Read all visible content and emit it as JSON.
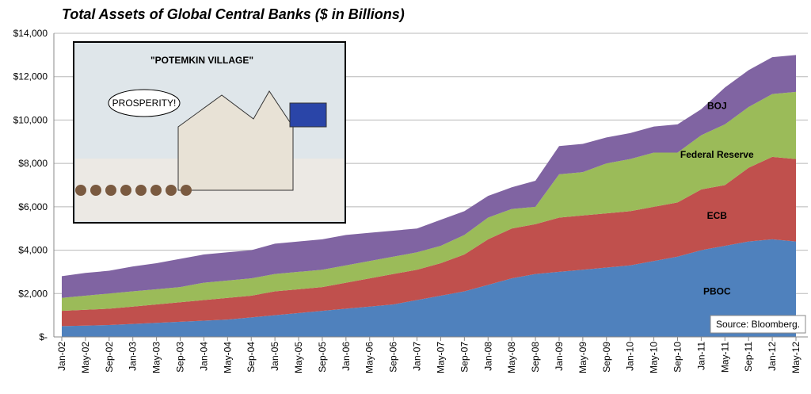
{
  "chart_data": {
    "type": "stacked-area",
    "title": "Total Assets of Global Central Banks ($ in Billions)",
    "categories": [
      "Jan-02",
      "May-02",
      "Sep-02",
      "Jan-03",
      "May-03",
      "Sep-03",
      "Jan-04",
      "May-04",
      "Sep-04",
      "Jan-05",
      "May-05",
      "Sep-05",
      "Jan-06",
      "May-06",
      "Sep-06",
      "Jan-07",
      "May-07",
      "Sep-07",
      "Jan-08",
      "May-08",
      "Sep-08",
      "Jan-09",
      "May-09",
      "Sep-09",
      "Jan-10",
      "May-10",
      "Sep-10",
      "Jan-11",
      "May-11",
      "Sep-11",
      "Jan-12",
      "May-12"
    ],
    "series": [
      {
        "name": "PBOC",
        "color": "#4f81bd",
        "values": [
          500,
          520,
          550,
          600,
          650,
          700,
          750,
          800,
          900,
          1000,
          1100,
          1200,
          1300,
          1400,
          1500,
          1700,
          1900,
          2100,
          2400,
          2700,
          2900,
          3000,
          3100,
          3200,
          3300,
          3500,
          3700,
          4000,
          4200,
          4400,
          4500,
          4400
        ]
      },
      {
        "name": "ECB",
        "color": "#c0504d",
        "values": [
          700,
          730,
          750,
          800,
          850,
          900,
          950,
          1000,
          1000,
          1100,
          1100,
          1100,
          1200,
          1300,
          1400,
          1400,
          1500,
          1700,
          2100,
          2300,
          2300,
          2500,
          2500,
          2500,
          2500,
          2500,
          2500,
          2800,
          2800,
          3400,
          3800,
          3800
        ]
      },
      {
        "name": "Federal Reserve",
        "color": "#9bbb59",
        "values": [
          600,
          650,
          700,
          700,
          700,
          700,
          800,
          800,
          800,
          800,
          800,
          800,
          800,
          800,
          800,
          800,
          800,
          900,
          1000,
          900,
          800,
          2000,
          2000,
          2300,
          2400,
          2500,
          2300,
          2500,
          2800,
          2800,
          2900,
          3100
        ]
      },
      {
        "name": "BOJ",
        "color": "#8064a2",
        "values": [
          1000,
          1050,
          1050,
          1150,
          1200,
          1300,
          1300,
          1300,
          1300,
          1400,
          1400,
          1400,
          1400,
          1300,
          1200,
          1100,
          1200,
          1100,
          1000,
          1000,
          1200,
          1300,
          1300,
          1200,
          1200,
          1200,
          1300,
          1200,
          1700,
          1700,
          1700,
          1700
        ]
      }
    ],
    "ylim": [
      0,
      14000
    ],
    "yticks": [
      {
        "value": 0,
        "label": "$-"
      },
      {
        "value": 2000,
        "label": "$2,000"
      },
      {
        "value": 4000,
        "label": "$4,000"
      },
      {
        "value": 6000,
        "label": "$6,000"
      },
      {
        "value": 8000,
        "label": "$8,000"
      },
      {
        "value": 10000,
        "label": "$10,000"
      },
      {
        "value": 12000,
        "label": "$12,000"
      },
      {
        "value": 14000,
        "label": "$14,000"
      }
    ],
    "grid": true,
    "source": "Source: Bloomberg.",
    "inset": {
      "caption": "\"POTEMKIN VILLAGE\"",
      "speech": "PROSPERITY!"
    }
  }
}
